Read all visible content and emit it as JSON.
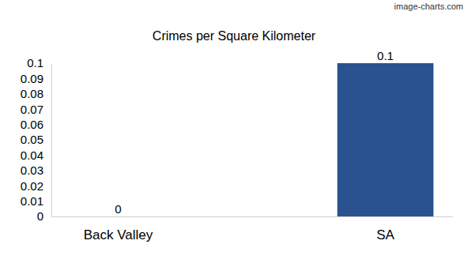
{
  "chart_data": {
    "type": "bar",
    "title": "Crimes per Square Kilometer",
    "categories": [
      "Back Valley",
      "SA"
    ],
    "values": [
      0,
      0.1
    ],
    "color": "#2a5290",
    "ylim": [
      0,
      0.1
    ],
    "yticks": [
      0,
      0.01,
      0.02,
      0.03,
      0.04,
      0.05,
      0.06,
      0.07,
      0.08,
      0.09,
      0.1
    ],
    "grid": false,
    "data_labels": true,
    "annotations": [
      "image-charts.com"
    ]
  }
}
